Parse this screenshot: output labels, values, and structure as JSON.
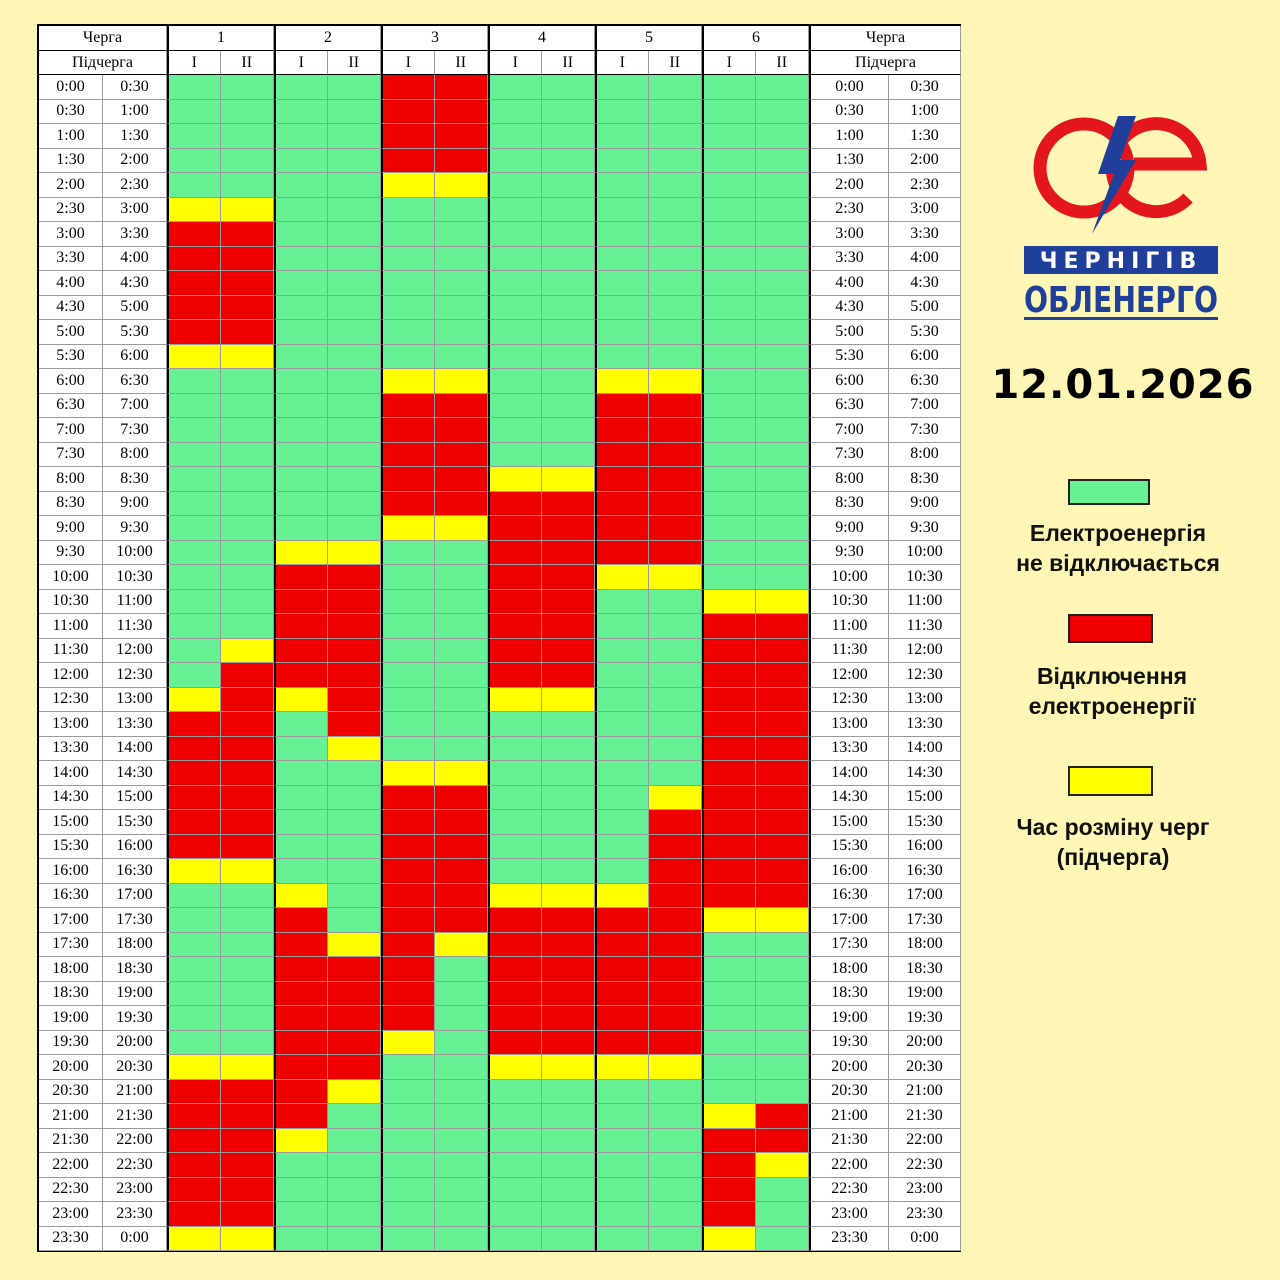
{
  "table": {
    "queue_header": "Черга",
    "subqueue_header": "Підчерга",
    "queues": [
      "1",
      "2",
      "3",
      "4",
      "5",
      "6"
    ],
    "subqueues": [
      "I",
      "II"
    ],
    "slots": [
      [
        "0:00",
        "0:30"
      ],
      [
        "0:30",
        "1:00"
      ],
      [
        "1:00",
        "1:30"
      ],
      [
        "1:30",
        "2:00"
      ],
      [
        "2:00",
        "2:30"
      ],
      [
        "2:30",
        "3:00"
      ],
      [
        "3:00",
        "3:30"
      ],
      [
        "3:30",
        "4:00"
      ],
      [
        "4:00",
        "4:30"
      ],
      [
        "4:30",
        "5:00"
      ],
      [
        "5:00",
        "5:30"
      ],
      [
        "5:30",
        "6:00"
      ],
      [
        "6:00",
        "6:30"
      ],
      [
        "6:30",
        "7:00"
      ],
      [
        "7:00",
        "7:30"
      ],
      [
        "7:30",
        "8:00"
      ],
      [
        "8:00",
        "8:30"
      ],
      [
        "8:30",
        "9:00"
      ],
      [
        "9:00",
        "9:30"
      ],
      [
        "9:30",
        "10:00"
      ],
      [
        "10:00",
        "10:30"
      ],
      [
        "10:30",
        "11:00"
      ],
      [
        "11:00",
        "11:30"
      ],
      [
        "11:30",
        "12:00"
      ],
      [
        "12:00",
        "12:30"
      ],
      [
        "12:30",
        "13:00"
      ],
      [
        "13:00",
        "13:30"
      ],
      [
        "13:30",
        "14:00"
      ],
      [
        "14:00",
        "14:30"
      ],
      [
        "14:30",
        "15:00"
      ],
      [
        "15:00",
        "15:30"
      ],
      [
        "15:30",
        "16:00"
      ],
      [
        "16:00",
        "16:30"
      ],
      [
        "16:30",
        "17:00"
      ],
      [
        "17:00",
        "17:30"
      ],
      [
        "17:30",
        "18:00"
      ],
      [
        "18:00",
        "18:30"
      ],
      [
        "18:30",
        "19:00"
      ],
      [
        "19:00",
        "19:30"
      ],
      [
        "19:30",
        "20:00"
      ],
      [
        "20:00",
        "20:30"
      ],
      [
        "20:30",
        "21:00"
      ],
      [
        "21:00",
        "21:30"
      ],
      [
        "21:30",
        "22:00"
      ],
      [
        "22:00",
        "22:30"
      ],
      [
        "22:30",
        "23:00"
      ],
      [
        "23:00",
        "23:30"
      ],
      [
        "23:30",
        "0:00"
      ]
    ],
    "status_columns": [
      "GGGGGYRRRRRYGGGGGGGGGGGGGYRRRRRRYGGGGGGGYRRRRRRY",
      "GGGGGYRRRRRYGGGGGGGGGGGYRRRRRRRRYGGGGGGGYRRRRRRY",
      "GGGGGGGGGGGGGGGGGGGYRRRRRYGGGGGGGYRRRRRRRRRYGGGG",
      "GGGGGGGGGGGGGGGGGGGYRRRRRRRYGGGGGGGYRRRRRYGGGGGG",
      "RRRRYGGGGGGGYRRRRRYGGGGGGGGGYRRRRRRRRRRYGGGGGGGG",
      "RRRRYGGGGGGGYRRRRRYGGGGGGGGGYRRRRRRYGGGGGGGGGGGG",
      "GGGGGGGGGGGGGGGGYRRRRRRRRYGGGGGGGYRRRRRRYGGGGGGG",
      "GGGGGGGGGGGGGGGGYRRRRRRRRYGGGGGGGYRRRRRRYGGGGGGG",
      "GGGGGGGGGGGGYRRRRRRRYGGGGGGGGGGGGYRRRRRRYGGGGGGG",
      "GGGGGGGGGGGGYRRRRRRRYGGGGGGGGYRRRRRRRRRRYGGGGGGG",
      "GGGGGGGGGGGGGGGGGGGGGYRRRRRRRRRRRRYGGGGGGGYRRRRY",
      "GGGGGGGGGGGGGGGGGGGGGYRRRRRRRRRRRRYGGGGGGGRRYGGG"
    ]
  },
  "logo": {
    "line1": "ЧЕРНІГІВ",
    "line2": "ОБЛЕНЕРГО",
    "mark_text": "ОЕ"
  },
  "date": "12.01.2026",
  "legend": [
    {
      "label_line1": "Електроенергія",
      "label_line2": "не відключається",
      "color": "#66f294"
    },
    {
      "label_line1": "Відключення",
      "label_line2": "електроенергії",
      "color": "#ee0000"
    },
    {
      "label_line1": "Час розміну черг",
      "label_line2": "(підчерга)",
      "color": "#ffff00"
    }
  ],
  "colors": {
    "background": "#fdf6b4",
    "power_on": "#66f294",
    "outage": "#ee0000",
    "switch": "#ffff00",
    "brand_red": "#e3161d",
    "brand_blue": "#1f3f9a"
  }
}
